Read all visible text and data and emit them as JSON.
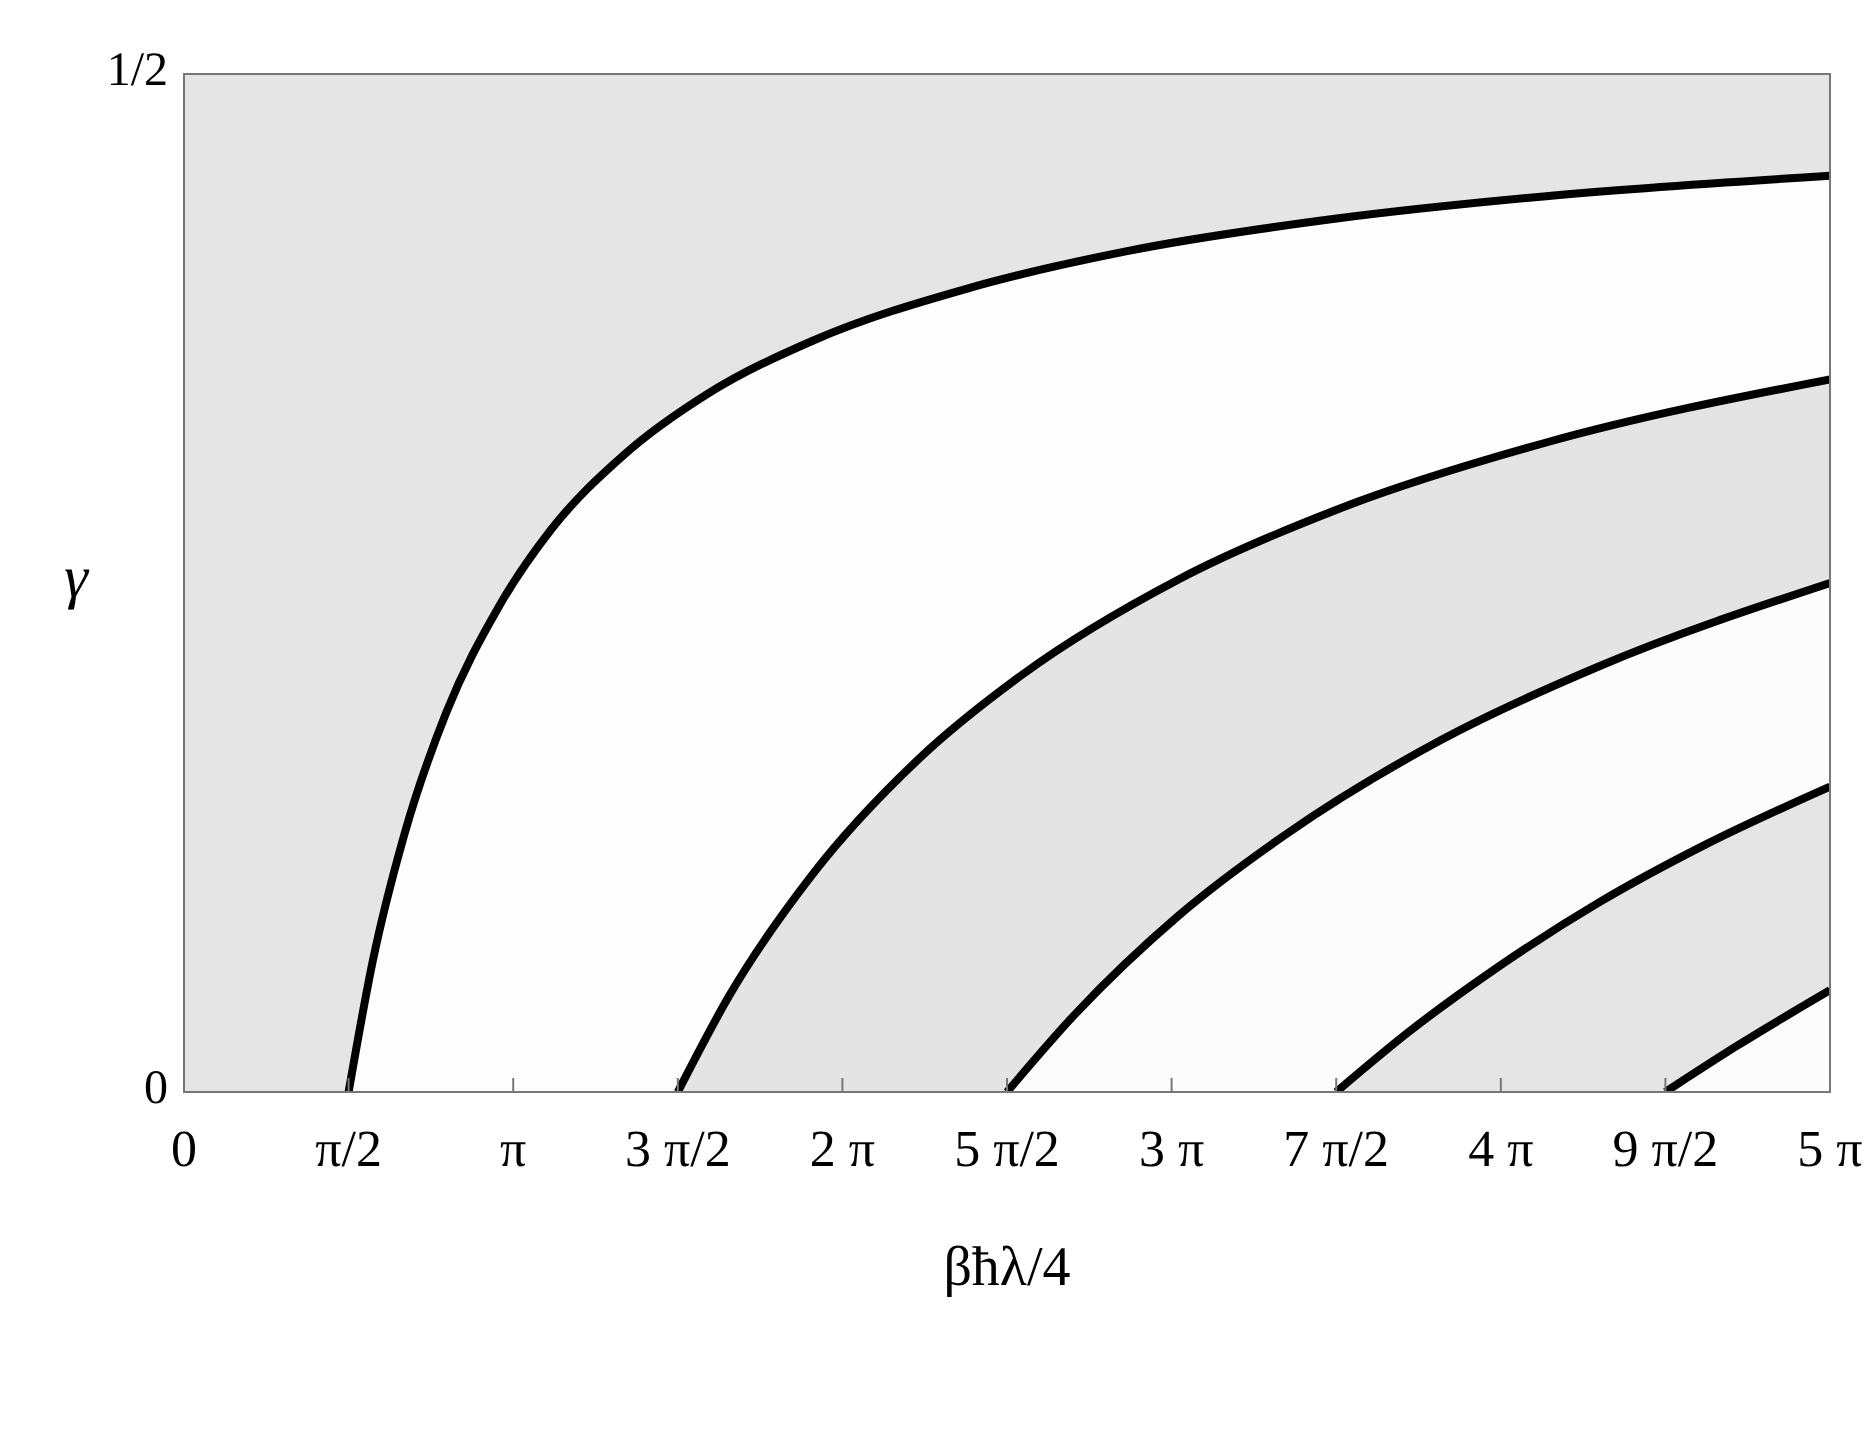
{
  "chart_data": {
    "type": "area",
    "xlabel": "βħλ/4",
    "ylabel": "γ",
    "xlim": [
      0,
      15.708
    ],
    "ylim": [
      0,
      0.5
    ],
    "xticks": [
      {
        "value": 0,
        "label": "0"
      },
      {
        "value": 1.5708,
        "label": "π/2"
      },
      {
        "value": 3.1416,
        "label": "π"
      },
      {
        "value": 4.7124,
        "label": "3 π/2"
      },
      {
        "value": 6.2832,
        "label": "2 π"
      },
      {
        "value": 7.854,
        "label": "5 π/2"
      },
      {
        "value": 9.4248,
        "label": "3 π"
      },
      {
        "value": 10.9956,
        "label": "7 π/2"
      },
      {
        "value": 12.5664,
        "label": "4 π"
      },
      {
        "value": 14.1372,
        "label": "9 π/2"
      },
      {
        "value": 15.708,
        "label": "5 π"
      }
    ],
    "yticks": [
      {
        "value": 0,
        "label": "0"
      },
      {
        "value": 0.5,
        "label": "1/2"
      }
    ],
    "series": [
      {
        "color": "#fdfdfd",
        "x": [
          1.5708,
          1.8,
          2.1,
          2.5,
          3.0,
          3.5,
          4.2,
          5,
          6,
          7.5,
          9,
          11,
          13,
          15.708
        ],
        "values": [
          0,
          0.064,
          0.126,
          0.186,
          0.238,
          0.276,
          0.313,
          0.343,
          0.369,
          0.395,
          0.413,
          0.429,
          0.44,
          0.45
        ]
      },
      {
        "color": "#e4e4e4",
        "x": [
          4.7124,
          5.2,
          6,
          7,
          8,
          9.5,
          11,
          13,
          15.708
        ],
        "values": [
          0,
          0.047,
          0.107,
          0.163,
          0.205,
          0.252,
          0.286,
          0.319,
          0.35
        ]
      },
      {
        "color": "#fcfcfc",
        "x": [
          7.854,
          8.5,
          9.5,
          10.5,
          12,
          13.5,
          15.708
        ],
        "values": [
          0,
          0.038,
          0.087,
          0.126,
          0.173,
          0.209,
          0.25
        ]
      },
      {
        "color": "#e5e5e5",
        "x": [
          10.9956,
          11.7,
          12.5,
          13.5,
          14.5,
          15.708
        ],
        "values": [
          0,
          0.03,
          0.06,
          0.093,
          0.121,
          0.15
        ]
      },
      {
        "color": "#fbfbfb",
        "x": [
          14.1372,
          14.8,
          15.708
        ],
        "values": [
          0,
          0.022,
          0.05
        ]
      }
    ]
  }
}
